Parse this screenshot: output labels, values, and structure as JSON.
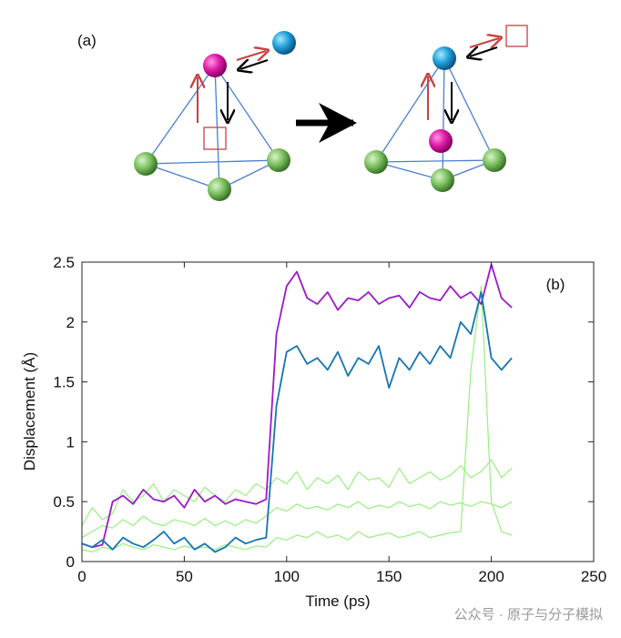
{
  "diagram": {
    "label": "(a)"
  },
  "chart_data": {
    "type": "line",
    "annotation": "(b)",
    "x_label": "Time (ps)",
    "y_label": "Displacement (Å)",
    "xlim": [
      0,
      250
    ],
    "xticks": [
      0,
      50,
      100,
      150,
      200,
      250
    ],
    "ylim": [
      0,
      2.5
    ],
    "yticks": [
      0,
      0.5,
      1,
      1.5,
      2,
      2.5
    ],
    "x": [
      0,
      5,
      10,
      15,
      20,
      25,
      30,
      35,
      40,
      45,
      50,
      55,
      60,
      65,
      70,
      75,
      80,
      85,
      90,
      95,
      100,
      105,
      110,
      115,
      120,
      125,
      130,
      135,
      140,
      145,
      150,
      155,
      160,
      165,
      170,
      175,
      180,
      185,
      190,
      195,
      200,
      205,
      210
    ],
    "series": [
      {
        "color": "#98ee80",
        "values": [
          0.3,
          0.45,
          0.35,
          0.4,
          0.6,
          0.5,
          0.55,
          0.65,
          0.5,
          0.6,
          0.55,
          0.5,
          0.62,
          0.55,
          0.5,
          0.6,
          0.55,
          0.65,
          0.6,
          0.7,
          0.65,
          0.75,
          0.6,
          0.7,
          0.65,
          0.72,
          0.6,
          0.75,
          0.68,
          0.7,
          0.62,
          0.78,
          0.65,
          0.7,
          0.75,
          0.68,
          0.72,
          0.8,
          0.7,
          0.75,
          0.85,
          0.7,
          0.78
        ]
      },
      {
        "color": "#98ee80",
        "values": [
          0.2,
          0.25,
          0.3,
          0.28,
          0.35,
          0.3,
          0.38,
          0.32,
          0.3,
          0.35,
          0.33,
          0.3,
          0.36,
          0.3,
          0.34,
          0.3,
          0.35,
          0.32,
          0.38,
          0.45,
          0.42,
          0.48,
          0.44,
          0.46,
          0.43,
          0.48,
          0.45,
          0.5,
          0.44,
          0.47,
          0.45,
          0.5,
          0.46,
          0.48,
          0.44,
          0.5,
          0.47,
          0.49,
          0.46,
          0.5,
          0.48,
          0.45,
          0.5
        ]
      },
      {
        "color": "#98ee80",
        "values": [
          0.1,
          0.08,
          0.12,
          0.1,
          0.15,
          0.12,
          0.1,
          0.14,
          0.12,
          0.1,
          0.13,
          0.11,
          0.12,
          0.1,
          0.14,
          0.12,
          0.1,
          0.13,
          0.12,
          0.2,
          0.18,
          0.22,
          0.2,
          0.25,
          0.2,
          0.22,
          0.18,
          0.25,
          0.2,
          0.22,
          0.24,
          0.2,
          0.22,
          0.25,
          0.2,
          0.22,
          0.24,
          0.25,
          1.6,
          2.3,
          0.5,
          0.25,
          0.22
        ]
      },
      {
        "color": "#9b19c8",
        "values": [
          0.15,
          0.12,
          0.14,
          0.5,
          0.55,
          0.48,
          0.6,
          0.52,
          0.5,
          0.55,
          0.45,
          0.6,
          0.5,
          0.55,
          0.48,
          0.52,
          0.5,
          0.48,
          0.52,
          1.9,
          2.3,
          2.42,
          2.2,
          2.15,
          2.25,
          2.1,
          2.2,
          2.18,
          2.25,
          2.15,
          2.2,
          2.22,
          2.12,
          2.25,
          2.2,
          2.18,
          2.3,
          2.2,
          2.25,
          2.15,
          2.48,
          2.2,
          2.12
        ]
      },
      {
        "color": "#1574b4",
        "values": [
          0.15,
          0.12,
          0.18,
          0.1,
          0.2,
          0.15,
          0.12,
          0.18,
          0.25,
          0.15,
          0.2,
          0.1,
          0.15,
          0.08,
          0.12,
          0.2,
          0.15,
          0.18,
          0.2,
          1.3,
          1.75,
          1.8,
          1.65,
          1.7,
          1.6,
          1.75,
          1.55,
          1.7,
          1.65,
          1.8,
          1.45,
          1.7,
          1.6,
          1.75,
          1.65,
          1.8,
          1.7,
          2.0,
          1.9,
          2.25,
          1.7,
          1.6,
          1.7
        ]
      }
    ]
  },
  "watermark": "公众号 · 原子与分子模拟"
}
